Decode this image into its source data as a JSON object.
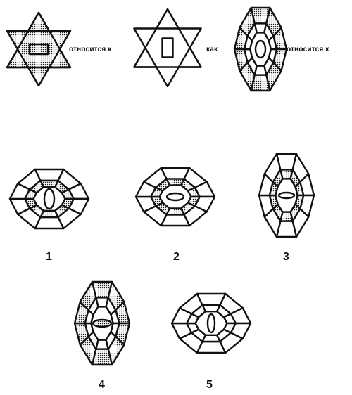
{
  "analogy": {
    "text_relates_1": "относится к",
    "text_as": "как",
    "text_relates_2": "относится к"
  },
  "options": [
    {
      "label": "1"
    },
    {
      "label": "2"
    },
    {
      "label": "3"
    },
    {
      "label": "4"
    },
    {
      "label": "5"
    }
  ]
}
